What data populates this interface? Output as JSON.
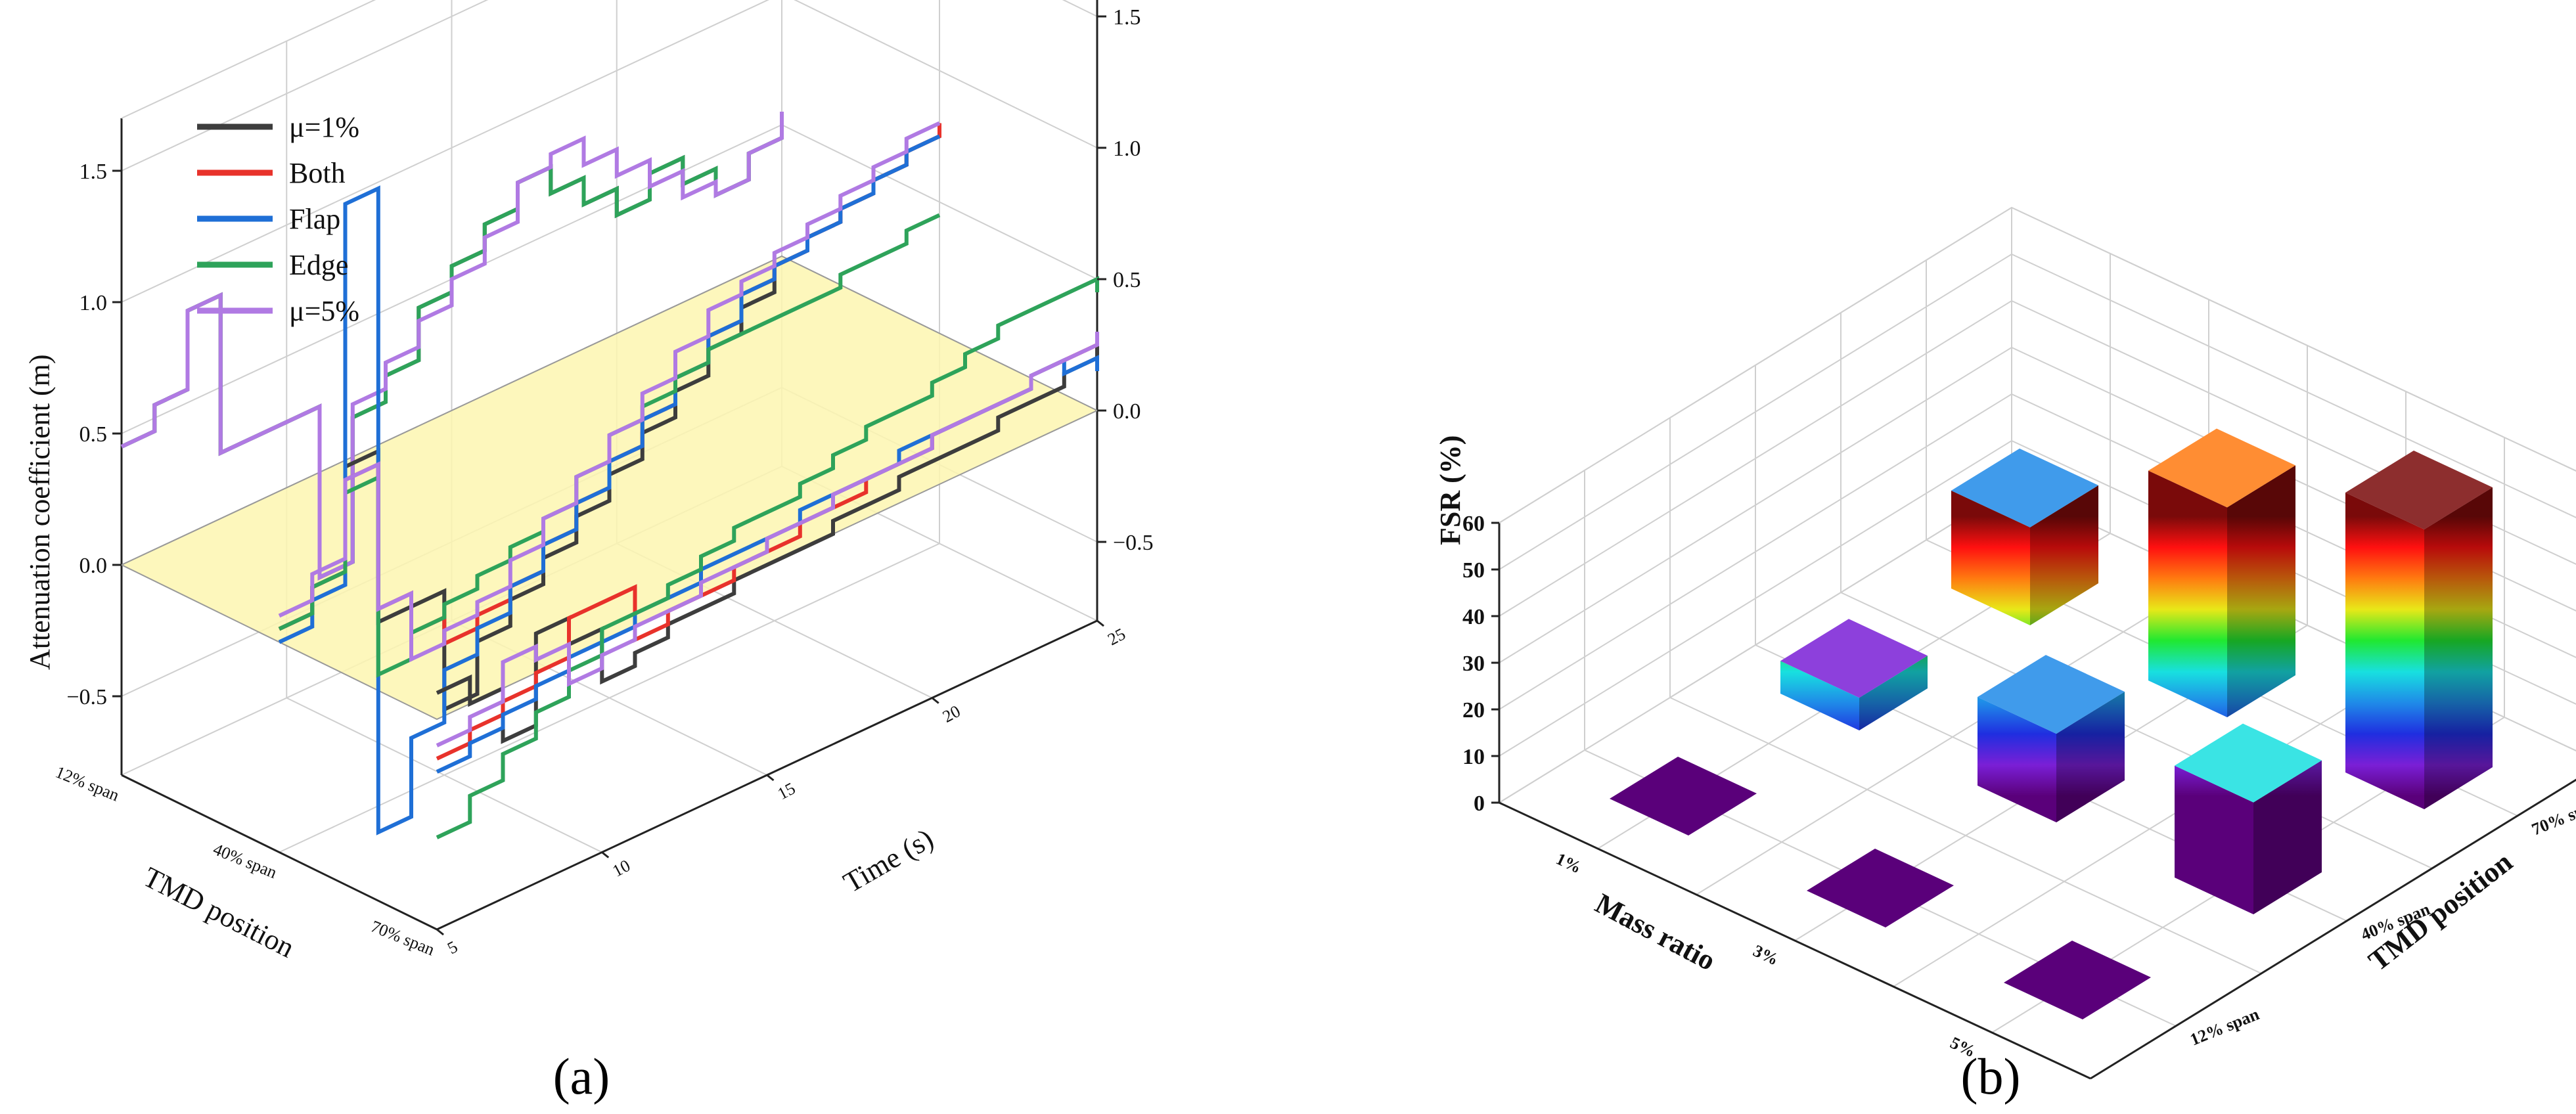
{
  "chart_data": [
    {
      "panel": "(a)",
      "type": "line",
      "ylabel": "Attenuation coefficient (m)",
      "xlabel": "TMD position",
      "zlabel": "Time (s)",
      "position_ticks": [
        "12% span",
        "40% span",
        "70% span"
      ],
      "time_ticks": [
        "5",
        "10",
        "15",
        "20",
        "25"
      ],
      "y_ticks_left": [
        "−0.5",
        "0.0",
        "0.5",
        "1.0",
        "1.5"
      ],
      "y_ticks_right": [
        "−0.5",
        "0.0",
        "0.5",
        "1.0",
        "1.5"
      ],
      "ylim": [
        -0.8,
        1.7
      ],
      "time_range": [
        5,
        25
      ],
      "zero_plane_color": "#fdf6b0",
      "legend": [
        {
          "label": "μ=1%",
          "color": "#3d3d3d"
        },
        {
          "label": "Both",
          "color": "#e8322b"
        },
        {
          "label": "Flap",
          "color": "#1f6fd6"
        },
        {
          "label": "Edge",
          "color": "#2ea35a"
        },
        {
          "label": "μ=5%",
          "color": "#b07ae3"
        }
      ],
      "series": [
        {
          "position": "12% span",
          "name": "μ=1%",
          "time": [
            5,
            6,
            7,
            8,
            9,
            10,
            11,
            12,
            13,
            14,
            15,
            16,
            17,
            18,
            19,
            20,
            21,
            22,
            23,
            24,
            25
          ],
          "values": [
            0.45,
            0.55,
            0.85,
            0.25,
            0.25,
            0.25,
            -0.4,
            0.15,
            0.25,
            0.45,
            0.55,
            0.65,
            0.75,
            0.65,
            0.55,
            0.45,
            0.55,
            0.45,
            0.35,
            0.45,
            0.55
          ]
        },
        {
          "position": "12% span",
          "name": "Edge",
          "time": [
            5,
            6,
            7,
            8,
            9,
            10,
            11,
            12,
            13,
            14,
            15,
            16,
            17,
            18,
            19,
            20,
            21,
            22,
            23,
            24,
            25
          ],
          "values": [
            0.45,
            0.55,
            0.85,
            0.25,
            0.25,
            0.25,
            -0.4,
            0.15,
            0.25,
            0.45,
            0.55,
            0.65,
            0.75,
            0.65,
            0.55,
            0.45,
            0.55,
            0.45,
            0.35,
            0.45,
            0.55
          ]
        },
        {
          "position": "12% span",
          "name": "μ=5%",
          "time": [
            5,
            6,
            7,
            8,
            9,
            10,
            11,
            12,
            13,
            14,
            15,
            16,
            17,
            18,
            19,
            20,
            21,
            22,
            23,
            24,
            25
          ],
          "values": [
            0.45,
            0.55,
            0.85,
            0.25,
            0.25,
            0.25,
            -0.4,
            0.2,
            0.3,
            0.4,
            0.5,
            0.6,
            0.75,
            0.8,
            0.7,
            0.6,
            0.5,
            0.4,
            0.35,
            0.45,
            0.55
          ]
        },
        {
          "position": "40% span",
          "name": "μ=1%",
          "time": [
            5,
            6,
            7,
            8,
            9,
            10,
            11,
            12,
            13,
            14,
            15,
            16,
            17,
            18,
            19,
            20,
            21,
            22,
            23,
            24,
            25
          ],
          "values": [
            0.05,
            0.15,
            0.55,
            -0.1,
            -0.1,
            -0.55,
            -0.35,
            -0.25,
            -0.15,
            -0.05,
            0.05,
            0.15,
            0.25,
            0.35,
            0.45,
            0.55,
            0.6,
            0.65,
            0.7,
            0.75,
            0.8
          ]
        },
        {
          "position": "40% span",
          "name": "Both",
          "time": [
            5,
            6,
            7,
            8,
            9,
            10,
            11,
            12,
            13,
            14,
            15,
            16,
            17,
            18,
            19,
            20,
            21,
            22,
            23,
            24,
            25
          ],
          "values": [
            0.05,
            0.15,
            0.5,
            -0.05,
            -0.2,
            -0.3,
            -0.25,
            -0.2,
            -0.1,
            0.0,
            0.1,
            0.2,
            0.3,
            0.4,
            0.5,
            0.55,
            0.6,
            0.65,
            0.7,
            0.75,
            0.8
          ]
        },
        {
          "position": "40% span",
          "name": "Flap",
          "time": [
            5,
            6,
            7,
            8,
            9,
            10,
            11,
            12,
            13,
            14,
            15,
            16,
            17,
            18,
            19,
            20,
            21,
            22,
            23,
            24,
            25
          ],
          "values": [
            0.0,
            0.1,
            1.55,
            -0.9,
            -0.6,
            -0.4,
            -0.3,
            -0.2,
            -0.1,
            0.0,
            0.1,
            0.2,
            0.3,
            0.4,
            0.5,
            0.55,
            0.6,
            0.65,
            0.7,
            0.75,
            0.75
          ]
        },
        {
          "position": "40% span",
          "name": "Edge",
          "time": [
            5,
            6,
            7,
            8,
            9,
            10,
            11,
            12,
            13,
            14,
            15,
            16,
            17,
            18,
            19,
            20,
            21,
            22,
            23,
            24,
            25
          ],
          "values": [
            0.05,
            0.15,
            0.45,
            -0.3,
            -0.2,
            -0.15,
            -0.1,
            -0.05,
            0.0,
            0.1,
            0.2,
            0.25,
            0.3,
            0.35,
            0.35,
            0.35,
            0.35,
            0.4,
            0.4,
            0.45,
            0.45
          ]
        },
        {
          "position": "40% span",
          "name": "μ=5%",
          "time": [
            5,
            6,
            7,
            8,
            9,
            10,
            11,
            12,
            13,
            14,
            15,
            16,
            17,
            18,
            19,
            20,
            21,
            22,
            23,
            24,
            25
          ],
          "values": [
            0.1,
            0.2,
            0.5,
            -0.05,
            -0.3,
            -0.25,
            -0.2,
            -0.1,
            0.0,
            0.1,
            0.2,
            0.3,
            0.4,
            0.5,
            0.55,
            0.6,
            0.65,
            0.7,
            0.75,
            0.8,
            0.8
          ]
        },
        {
          "position": "70% span",
          "name": "μ=1%",
          "time": [
            5,
            6,
            7,
            8,
            9,
            10,
            11,
            12,
            13,
            14,
            15,
            16,
            17,
            18,
            19,
            20,
            21,
            22,
            23,
            24,
            25
          ],
          "values": [
            0.1,
            0.0,
            -0.2,
            0.15,
            0.05,
            -0.15,
            -0.1,
            -0.05,
            -0.05,
            0.0,
            0.0,
            0.0,
            0.05,
            0.05,
            0.1,
            0.1,
            0.1,
            0.15,
            0.15,
            0.2,
            0.25
          ]
        },
        {
          "position": "70% span",
          "name": "Both",
          "time": [
            5,
            6,
            7,
            8,
            9,
            10,
            11,
            12,
            13,
            14,
            15,
            16,
            17,
            18,
            19,
            20,
            21,
            22,
            23,
            24,
            25
          ],
          "values": [
            -0.15,
            -0.1,
            -0.05,
            0.0,
            0.15,
            0.15,
            -0.05,
            0.0,
            0.0,
            0.05,
            0.05,
            0.1,
            0.1,
            0.15,
            0.15,
            0.2,
            0.2,
            0.2,
            0.25,
            0.25,
            0.25
          ]
        },
        {
          "position": "70% span",
          "name": "Flap",
          "time": [
            5,
            6,
            7,
            8,
            9,
            10,
            11,
            12,
            13,
            14,
            15,
            16,
            17,
            18,
            19,
            20,
            21,
            22,
            23,
            24,
            25
          ],
          "values": [
            -0.2,
            -0.15,
            -0.1,
            -0.05,
            0.0,
            0.0,
            0.05,
            0.05,
            0.1,
            0.1,
            0.1,
            0.15,
            0.15,
            0.15,
            0.2,
            0.2,
            0.2,
            0.2,
            0.25,
            0.2,
            0.15
          ]
        },
        {
          "position": "70% span",
          "name": "Edge",
          "time": [
            5,
            6,
            7,
            8,
            9,
            10,
            11,
            12,
            13,
            14,
            15,
            16,
            17,
            18,
            19,
            20,
            21,
            22,
            23,
            24,
            25
          ],
          "values": [
            -0.45,
            -0.35,
            -0.25,
            -0.15,
            -0.05,
            0.05,
            0.05,
            0.1,
            0.15,
            0.2,
            0.2,
            0.25,
            0.3,
            0.35,
            0.35,
            0.4,
            0.45,
            0.5,
            0.5,
            0.5,
            0.45
          ]
        },
        {
          "position": "70% span",
          "name": "μ=5%",
          "time": [
            5,
            6,
            7,
            8,
            9,
            10,
            11,
            12,
            13,
            14,
            15,
            16,
            17,
            18,
            19,
            20,
            21,
            22,
            23,
            24,
            25
          ],
          "values": [
            -0.1,
            -0.05,
            0.1,
            0.05,
            -0.1,
            -0.05,
            0.0,
            0.0,
            0.05,
            0.05,
            0.1,
            0.1,
            0.15,
            0.15,
            0.15,
            0.2,
            0.2,
            0.2,
            0.25,
            0.25,
            0.3
          ]
        }
      ]
    },
    {
      "panel": "(b)",
      "type": "bar",
      "ylabel": "FSR (%)",
      "xlabel": "Mass ratio",
      "zlabel": "TMD position",
      "mass_ratio_ticks": [
        "1%",
        "3%",
        "5%"
      ],
      "position_ticks": [
        "12% span",
        "40% span",
        "70% span"
      ],
      "y_ticks": [
        "0",
        "10",
        "20",
        "30",
        "40",
        "50",
        "60"
      ],
      "ylim": [
        0,
        60
      ],
      "bars": [
        {
          "mass_ratio": "1%",
          "position": "12% span",
          "value": 0
        },
        {
          "mass_ratio": "1%",
          "position": "40% span",
          "value": 7
        },
        {
          "mass_ratio": "1%",
          "position": "70% span",
          "value": 21
        },
        {
          "mass_ratio": "3%",
          "position": "12% span",
          "value": 0
        },
        {
          "mass_ratio": "3%",
          "position": "40% span",
          "value": 19
        },
        {
          "mass_ratio": "3%",
          "position": "70% span",
          "value": 45
        },
        {
          "mass_ratio": "5%",
          "position": "12% span",
          "value": 0
        },
        {
          "mass_ratio": "5%",
          "position": "40% span",
          "value": 24
        },
        {
          "mass_ratio": "5%",
          "position": "70% span",
          "value": 60
        }
      ],
      "colormap": [
        "#5a007a",
        "#7a1fd6",
        "#1f2ee0",
        "#1f8ae8",
        "#18e0e0",
        "#20e830",
        "#e8e818",
        "#ff7a10",
        "#ff1010",
        "#7a0a0a"
      ]
    }
  ]
}
